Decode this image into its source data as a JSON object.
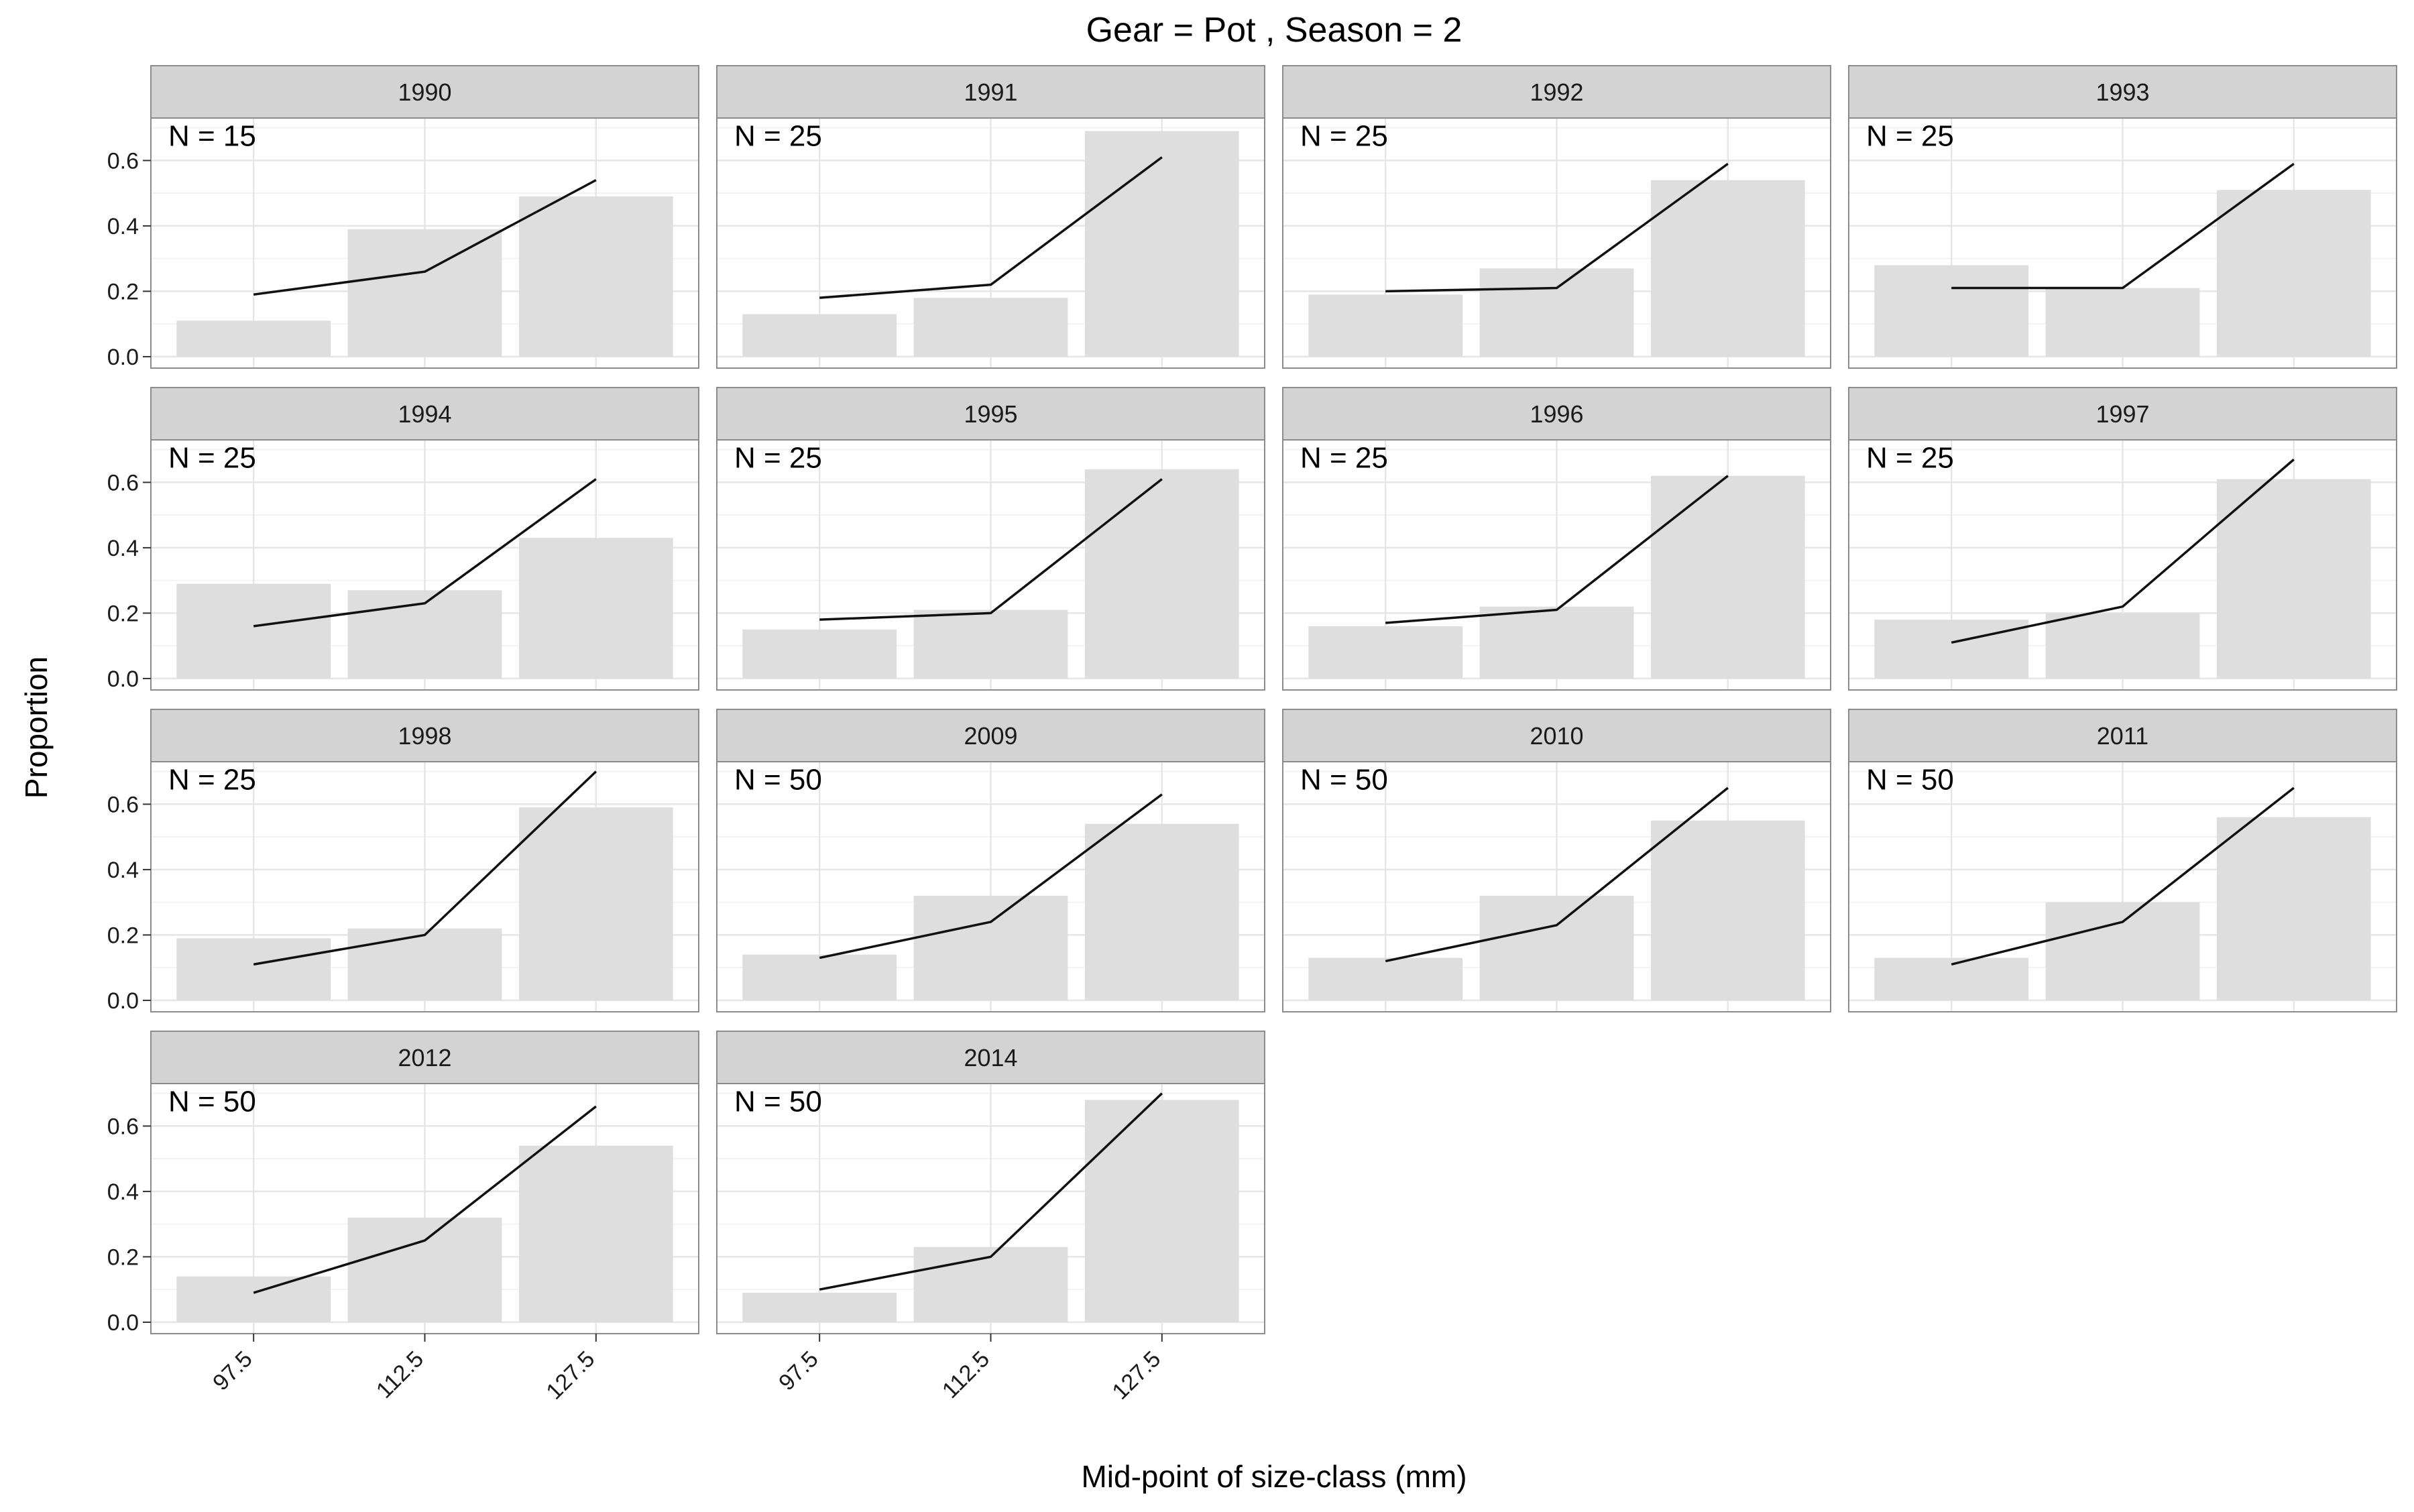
{
  "chart_data": {
    "type": "bar",
    "title": "Gear = Pot , Season = 2",
    "xlabel": "Mid-point of size-class (mm)",
    "ylabel": "Proportion",
    "categories": [
      "97.5",
      "112.5",
      "127.5"
    ],
    "y_ticks": [
      "0.0",
      "0.2",
      "0.4",
      "0.6"
    ],
    "ylim": [
      -0.035,
      0.73
    ],
    "grid": true,
    "facet_columns": 4,
    "bar_color": "#dedede",
    "line_color": "#111111",
    "strip_color": "#d3d3d3",
    "panels": [
      {
        "label": "1990",
        "n_label": "N = 15",
        "bars": [
          0.11,
          0.39,
          0.49
        ],
        "line": [
          0.19,
          0.26,
          0.54
        ]
      },
      {
        "label": "1991",
        "n_label": "N = 25",
        "bars": [
          0.13,
          0.18,
          0.69
        ],
        "line": [
          0.18,
          0.22,
          0.61
        ]
      },
      {
        "label": "1992",
        "n_label": "N = 25",
        "bars": [
          0.19,
          0.27,
          0.54
        ],
        "line": [
          0.2,
          0.21,
          0.59
        ]
      },
      {
        "label": "1993",
        "n_label": "N = 25",
        "bars": [
          0.28,
          0.21,
          0.51
        ],
        "line": [
          0.21,
          0.21,
          0.59
        ]
      },
      {
        "label": "1994",
        "n_label": "N = 25",
        "bars": [
          0.29,
          0.27,
          0.43
        ],
        "line": [
          0.16,
          0.23,
          0.61
        ]
      },
      {
        "label": "1995",
        "n_label": "N = 25",
        "bars": [
          0.15,
          0.21,
          0.64
        ],
        "line": [
          0.18,
          0.2,
          0.61
        ]
      },
      {
        "label": "1996",
        "n_label": "N = 25",
        "bars": [
          0.16,
          0.22,
          0.62
        ],
        "line": [
          0.17,
          0.21,
          0.62
        ]
      },
      {
        "label": "1997",
        "n_label": "N = 25",
        "bars": [
          0.18,
          0.2,
          0.61
        ],
        "line": [
          0.11,
          0.22,
          0.67
        ]
      },
      {
        "label": "1998",
        "n_label": "N = 25",
        "bars": [
          0.19,
          0.22,
          0.59
        ],
        "line": [
          0.11,
          0.2,
          0.7
        ]
      },
      {
        "label": "2009",
        "n_label": "N = 50",
        "bars": [
          0.14,
          0.32,
          0.54
        ],
        "line": [
          0.13,
          0.24,
          0.63
        ]
      },
      {
        "label": "2010",
        "n_label": "N = 50",
        "bars": [
          0.13,
          0.32,
          0.55
        ],
        "line": [
          0.12,
          0.23,
          0.65
        ]
      },
      {
        "label": "2011",
        "n_label": "N = 50",
        "bars": [
          0.13,
          0.3,
          0.56
        ],
        "line": [
          0.11,
          0.24,
          0.65
        ]
      },
      {
        "label": "2012",
        "n_label": "N = 50",
        "bars": [
          0.14,
          0.32,
          0.54
        ],
        "line": [
          0.09,
          0.25,
          0.66
        ]
      },
      {
        "label": "2014",
        "n_label": "N = 50",
        "bars": [
          0.09,
          0.23,
          0.68
        ],
        "line": [
          0.1,
          0.2,
          0.7
        ]
      }
    ]
  }
}
